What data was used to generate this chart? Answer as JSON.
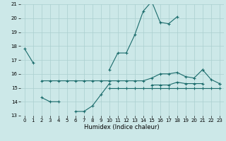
{
  "line1_x": [
    0,
    1,
    2,
    3,
    4,
    5,
    6,
    7,
    8,
    9,
    10,
    11,
    12,
    13,
    14,
    15,
    16,
    17,
    18,
    19,
    20,
    21,
    22,
    23
  ],
  "line1_y": [
    17.8,
    16.8,
    null,
    null,
    null,
    null,
    null,
    null,
    null,
    null,
    16.3,
    17.5,
    17.5,
    18.8,
    20.5,
    21.2,
    19.7,
    19.6,
    20.1,
    null,
    null,
    16.3,
    null,
    15.3
  ],
  "line2_x": [
    0,
    1,
    2,
    3,
    4,
    5,
    6,
    7,
    8,
    9,
    10,
    11,
    12,
    13,
    14,
    15,
    16,
    17,
    18,
    19,
    20,
    21,
    22,
    23
  ],
  "line2_y": [
    null,
    null,
    15.5,
    15.5,
    15.5,
    15.5,
    15.5,
    15.5,
    15.5,
    15.5,
    15.5,
    15.5,
    15.5,
    15.5,
    15.5,
    15.7,
    16.0,
    16.0,
    16.1,
    15.8,
    15.7,
    16.3,
    15.6,
    15.3
  ],
  "line3_x": [
    0,
    1,
    2,
    3,
    4,
    5,
    6,
    7,
    8,
    9,
    10,
    11,
    12,
    13,
    14,
    15,
    16,
    17,
    18,
    19,
    20,
    21,
    22,
    23
  ],
  "line3_y": [
    null,
    null,
    14.3,
    14.0,
    14.0,
    null,
    13.3,
    13.3,
    13.7,
    14.5,
    15.3,
    null,
    null,
    null,
    null,
    15.2,
    15.2,
    15.2,
    15.4,
    15.3,
    15.3,
    15.3,
    null,
    null
  ],
  "line4_x": [
    0,
    1,
    2,
    3,
    4,
    5,
    6,
    7,
    8,
    9,
    10,
    11,
    12,
    13,
    14,
    15,
    16,
    17,
    18,
    19,
    20,
    21,
    22,
    23
  ],
  "line4_y": [
    null,
    null,
    null,
    null,
    null,
    null,
    null,
    null,
    null,
    null,
    15.0,
    15.0,
    15.0,
    15.0,
    15.0,
    15.0,
    15.0,
    15.0,
    15.0,
    15.0,
    15.0,
    15.0,
    15.0,
    15.0
  ],
  "line_color": "#1a6b6b",
  "bg_color": "#cce8e8",
  "grid_color": "#aacfcf",
  "xlabel": "Humidex (Indice chaleur)",
  "xlim": [
    -0.5,
    23.5
  ],
  "ylim": [
    13,
    21
  ],
  "yticks": [
    13,
    14,
    15,
    16,
    17,
    18,
    19,
    20,
    21
  ],
  "xticks": [
    0,
    1,
    2,
    3,
    4,
    5,
    6,
    7,
    8,
    9,
    10,
    11,
    12,
    13,
    14,
    15,
    16,
    17,
    18,
    19,
    20,
    21,
    22,
    23
  ],
  "marker": "+",
  "markersize": 3.5,
  "linewidth": 0.8,
  "tick_labelsize": 5.0,
  "xlabel_fontsize": 6.0
}
